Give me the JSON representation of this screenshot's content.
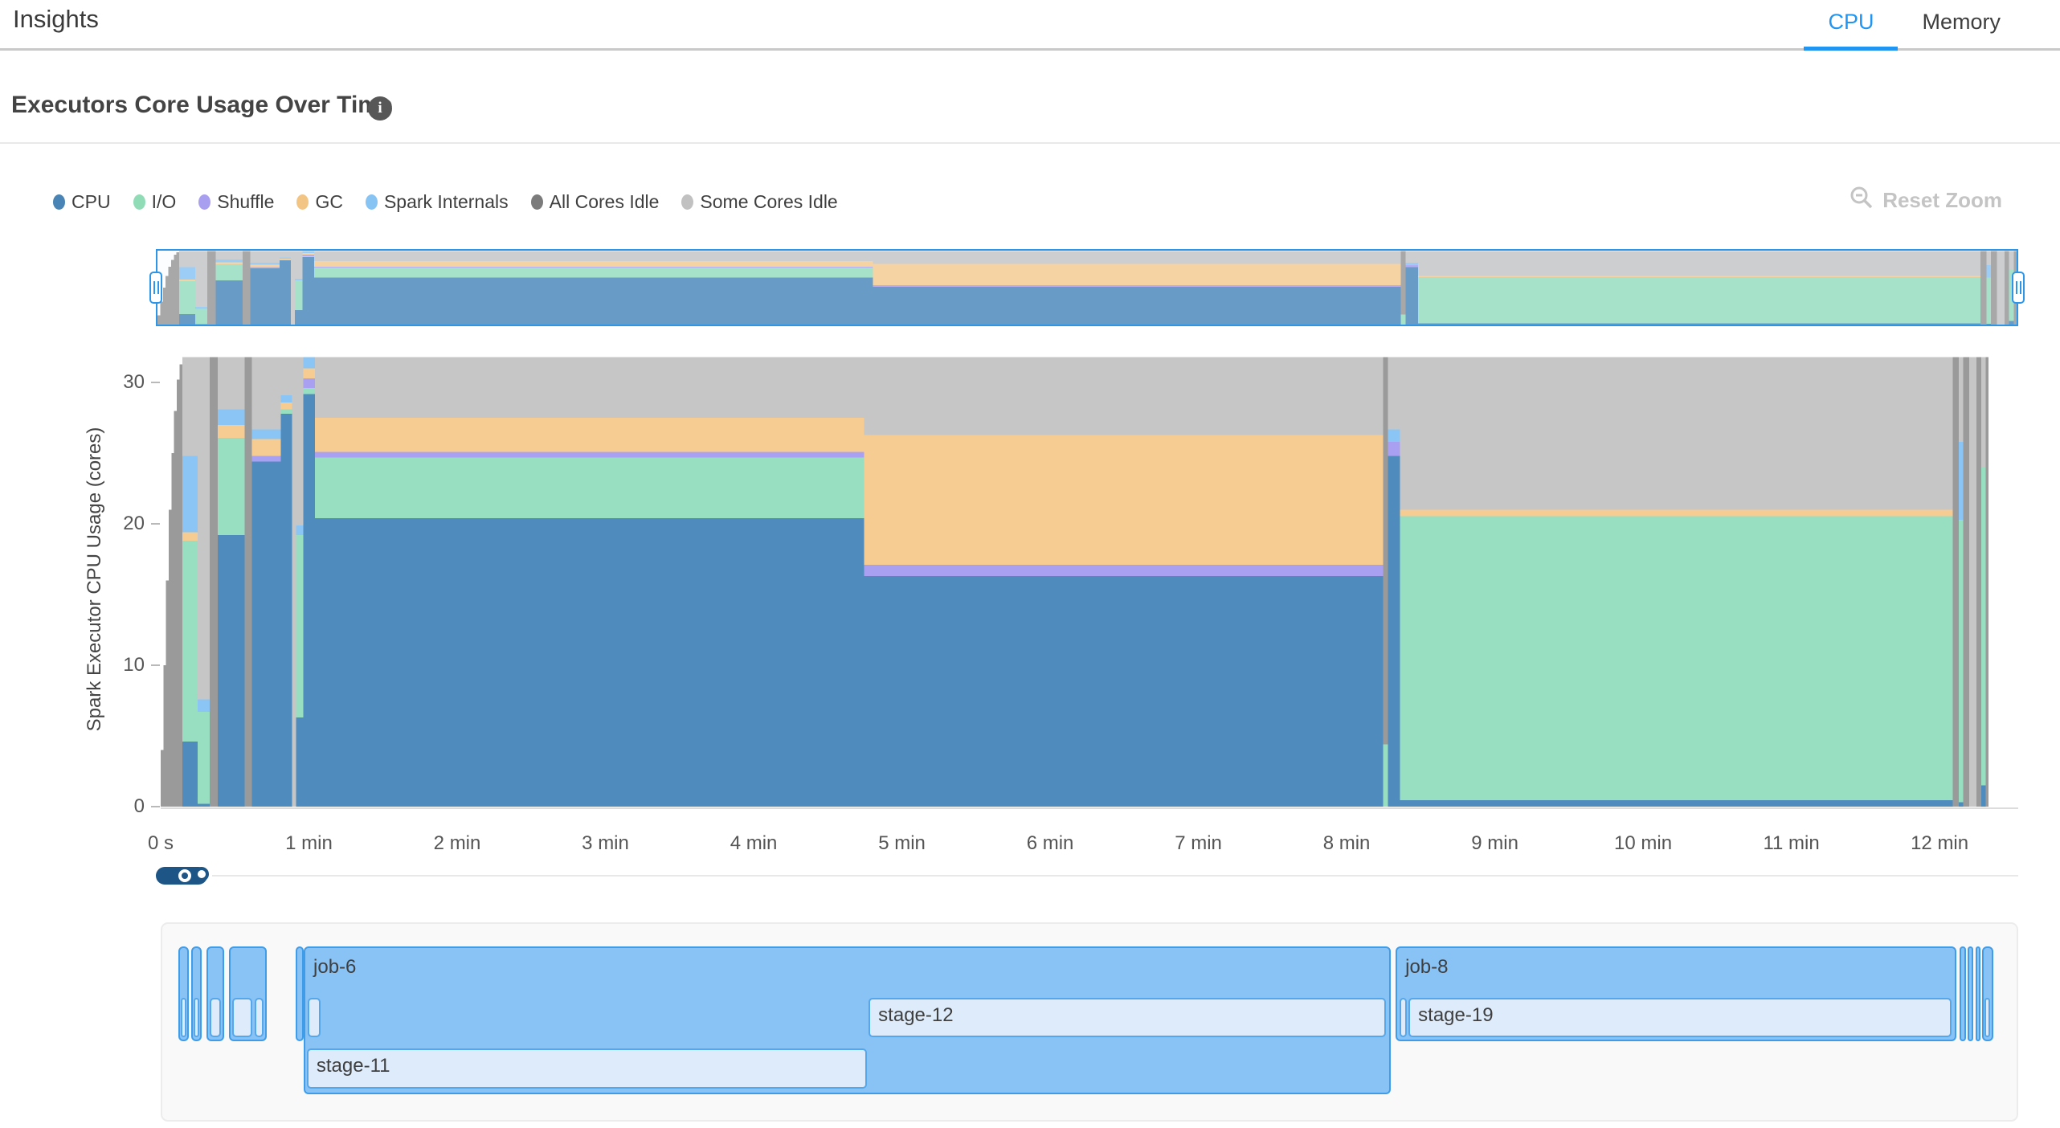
{
  "header": {
    "title": "Insights",
    "tabs": [
      {
        "label": "CPU",
        "active": true
      },
      {
        "label": "Memory",
        "active": false
      }
    ]
  },
  "section": {
    "title": "Executors Core Usage Over Time",
    "info_glyph": "i"
  },
  "toolbar": {
    "reset_zoom_label": "Reset Zoom"
  },
  "legend": {
    "items": [
      {
        "key": "cpu",
        "label": "CPU",
        "dot_color": "#4884b5"
      },
      {
        "key": "io",
        "label": "I/O",
        "dot_color": "#8fdcb6"
      },
      {
        "key": "shuffle",
        "label": "Shuffle",
        "dot_color": "#a89ff1"
      },
      {
        "key": "gc",
        "label": "GC",
        "dot_color": "#f3c585"
      },
      {
        "key": "internals",
        "label": "Spark Internals",
        "dot_color": "#87c4f4"
      },
      {
        "key": "all_idle",
        "label": "All Cores Idle",
        "dot_color": "#7b7b7b"
      },
      {
        "key": "some_idle",
        "label": "Some Cores Idle",
        "dot_color": "#c1c1c1"
      }
    ]
  },
  "chart_data": {
    "type": "area",
    "stacked": true,
    "ylabel": "Spark Executor CPU Usage (cores)",
    "ylim": [
      0,
      32
    ],
    "yticks": [
      0,
      10,
      20,
      30
    ],
    "xlim_minutes": [
      0,
      12.33
    ],
    "xticks": [
      {
        "t": 0,
        "label": "0 s"
      },
      {
        "t": 1,
        "label": "1 min"
      },
      {
        "t": 2,
        "label": "2 min"
      },
      {
        "t": 3,
        "label": "3 min"
      },
      {
        "t": 4,
        "label": "4 min"
      },
      {
        "t": 5,
        "label": "5 min"
      },
      {
        "t": 6,
        "label": "6 min"
      },
      {
        "t": 7,
        "label": "7 min"
      },
      {
        "t": 8,
        "label": "8 min"
      },
      {
        "t": 9,
        "label": "9 min"
      },
      {
        "t": 10,
        "label": "10 min"
      },
      {
        "t": 11,
        "label": "11 min"
      },
      {
        "t": 12,
        "label": "12 min"
      }
    ],
    "order": [
      "cpu",
      "io",
      "shuffle",
      "gc",
      "internals",
      "all_idle",
      "some_idle"
    ],
    "colors": {
      "cpu": "#4f8cbd",
      "io": "#98dec1",
      "shuffle": "#a9a0f2",
      "gc": "#f6cc92",
      "internals": "#8bc5f6",
      "all_idle": "#9a9a9a",
      "some_idle": "#c6c6c7"
    },
    "segments": [
      {
        "t0": 0.0,
        "t1": 0.018,
        "v": {
          "all_idle": 4
        }
      },
      {
        "t0": 0.018,
        "t1": 0.036,
        "v": {
          "all_idle": 10
        }
      },
      {
        "t0": 0.036,
        "t1": 0.054,
        "v": {
          "all_idle": 16
        }
      },
      {
        "t0": 0.054,
        "t1": 0.072,
        "v": {
          "all_idle": 21
        }
      },
      {
        "t0": 0.072,
        "t1": 0.09,
        "v": {
          "all_idle": 25
        }
      },
      {
        "t0": 0.09,
        "t1": 0.108,
        "v": {
          "all_idle": 28
        }
      },
      {
        "t0": 0.108,
        "t1": 0.126,
        "v": {
          "all_idle": 30.2
        }
      },
      {
        "t0": 0.126,
        "t1": 0.145,
        "v": {
          "all_idle": 31.3
        }
      },
      {
        "t0": 0.145,
        "t1": 0.25,
        "v": {
          "cpu": 4.6,
          "io": 14.2,
          "gc": 0.6,
          "internals": 5.4,
          "some_idle": 7.0
        }
      },
      {
        "t0": 0.25,
        "t1": 0.33,
        "v": {
          "cpu": 0.2,
          "io": 6.5,
          "internals": 0.9,
          "some_idle": 24.2
        }
      },
      {
        "t0": 0.33,
        "t1": 0.385,
        "v": {
          "all_idle": 31.8
        }
      },
      {
        "t0": 0.385,
        "t1": 0.565,
        "v": {
          "cpu": 19.2,
          "io": 6.9,
          "gc": 0.9,
          "internals": 1.1,
          "some_idle": 3.7
        }
      },
      {
        "t0": 0.565,
        "t1": 0.615,
        "v": {
          "all_idle": 31.8
        }
      },
      {
        "t0": 0.615,
        "t1": 0.81,
        "v": {
          "cpu": 24.4,
          "shuffle": 0.4,
          "gc": 1.2,
          "internals": 0.7,
          "some_idle": 5.1
        }
      },
      {
        "t0": 0.81,
        "t1": 0.885,
        "v": {
          "cpu": 27.8,
          "io": 0.3,
          "gc": 0.5,
          "internals": 0.5,
          "some_idle": 2.7
        }
      },
      {
        "t0": 0.885,
        "t1": 0.912,
        "v": {
          "some_idle": 31.8
        }
      },
      {
        "t0": 0.912,
        "t1": 0.962,
        "v": {
          "cpu": 6.3,
          "io": 12.9,
          "internals": 0.7,
          "some_idle": 11.9
        }
      },
      {
        "t0": 0.962,
        "t1": 1.04,
        "v": {
          "cpu": 29.2,
          "io": 0.4,
          "shuffle": 0.7,
          "gc": 0.7,
          "internals": 0.8
        }
      },
      {
        "t0": 1.04,
        "t1": 4.745,
        "v": {
          "cpu": 20.4,
          "io": 4.3,
          "shuffle": 0.4,
          "gc": 2.4,
          "some_idle": 4.3
        }
      },
      {
        "t0": 4.745,
        "t1": 8.245,
        "v": {
          "cpu": 16.3,
          "shuffle": 0.8,
          "gc": 9.2,
          "some_idle": 5.5
        }
      },
      {
        "t0": 8.245,
        "t1": 8.278,
        "v": {
          "io": 4.4,
          "all_idle": 27.4
        }
      },
      {
        "t0": 8.278,
        "t1": 8.36,
        "v": {
          "cpu": 24.8,
          "shuffle": 1.0,
          "internals": 0.9,
          "some_idle": 5.1
        }
      },
      {
        "t0": 8.36,
        "t1": 12.09,
        "v": {
          "cpu": 0.45,
          "io": 20.1,
          "gc": 0.45,
          "some_idle": 10.8
        }
      },
      {
        "t0": 12.09,
        "t1": 12.13,
        "v": {
          "all_idle": 31.8
        }
      },
      {
        "t0": 12.13,
        "t1": 12.16,
        "v": {
          "cpu": 0.3,
          "io": 20.0,
          "internals": 5.5,
          "some_idle": 6.0
        }
      },
      {
        "t0": 12.16,
        "t1": 12.2,
        "v": {
          "all_idle": 31.8
        }
      },
      {
        "t0": 12.2,
        "t1": 12.25,
        "v": {
          "some_idle": 31.8
        }
      },
      {
        "t0": 12.25,
        "t1": 12.28,
        "v": {
          "all_idle": 31.8
        }
      },
      {
        "t0": 12.28,
        "t1": 12.31,
        "v": {
          "cpu": 1.5,
          "io": 22.5,
          "some_idle": 7.8
        }
      },
      {
        "t0": 12.31,
        "t1": 12.33,
        "v": {
          "all_idle": 31.8
        }
      }
    ]
  },
  "timeline": {
    "jobs": [
      {
        "label": "",
        "t0": 0.108,
        "t1": 0.18,
        "tall": false,
        "stages": [
          {
            "label": "",
            "t0": 0.124,
            "t1": 0.164,
            "row": 0
          }
        ]
      },
      {
        "label": "",
        "t0": 0.195,
        "t1": 0.266,
        "tall": false,
        "stages": [
          {
            "label": "",
            "t0": 0.211,
            "t1": 0.25,
            "row": 0
          }
        ]
      },
      {
        "label": "",
        "t0": 0.298,
        "t1": 0.417,
        "tall": false,
        "stages": [
          {
            "label": "",
            "t0": 0.32,
            "t1": 0.396,
            "row": 0
          }
        ]
      },
      {
        "label": "",
        "t0": 0.45,
        "t1": 0.705,
        "tall": false,
        "stages": [
          {
            "label": "",
            "t0": 0.471,
            "t1": 0.607,
            "row": 0
          },
          {
            "label": "",
            "t0": 0.623,
            "t1": 0.684,
            "row": 0
          }
        ]
      },
      {
        "label": "",
        "t0": 0.9,
        "t1": 0.952,
        "tall": false,
        "stages": []
      },
      {
        "label": "job-6",
        "t0": 0.954,
        "t1": 8.288,
        "tall": true,
        "stages": [
          {
            "label": "",
            "t0": 0.98,
            "t1": 1.066,
            "row": 0
          },
          {
            "label": "stage-12",
            "t0": 4.765,
            "t1": 8.256,
            "row": 0
          },
          {
            "label": "stage-11",
            "t0": 0.975,
            "t1": 4.754,
            "row": 1
          }
        ]
      },
      {
        "label": "job-8",
        "t0": 8.32,
        "t1": 12.103,
        "tall": false,
        "stages": [
          {
            "label": "",
            "t0": 8.348,
            "t1": 8.396,
            "row": 0
          },
          {
            "label": "stage-19",
            "t0": 8.407,
            "t1": 12.071,
            "row": 0
          }
        ]
      },
      {
        "label": "",
        "t0": 12.125,
        "t1": 12.165,
        "tall": false,
        "stages": []
      },
      {
        "label": "",
        "t0": 12.18,
        "t1": 12.215,
        "tall": false,
        "stages": []
      },
      {
        "label": "",
        "t0": 12.23,
        "t1": 12.262,
        "tall": false,
        "stages": []
      },
      {
        "label": "",
        "t0": 12.275,
        "t1": 12.35,
        "tall": false,
        "stages": [
          {
            "label": "",
            "t0": 12.29,
            "t1": 12.332,
            "row": 0
          }
        ]
      }
    ]
  }
}
